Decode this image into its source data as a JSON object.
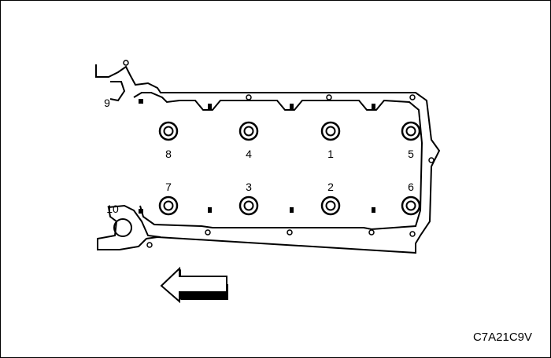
{
  "figure_code": "C7A21C9V",
  "bolts": [
    {
      "label": "1",
      "row": "top",
      "col": 2
    },
    {
      "label": "2",
      "row": "bottom",
      "col": 2
    },
    {
      "label": "3",
      "row": "bottom",
      "col": 1
    },
    {
      "label": "4",
      "row": "top",
      "col": 1
    },
    {
      "label": "5",
      "row": "top",
      "col": 3
    },
    {
      "label": "6",
      "row": "bottom",
      "col": 3
    },
    {
      "label": "7",
      "row": "bottom",
      "col": 0
    },
    {
      "label": "8",
      "row": "top",
      "col": 0
    }
  ],
  "extra_labels": {
    "nine": "9",
    "ten": "10"
  },
  "arrow_direction": "left"
}
